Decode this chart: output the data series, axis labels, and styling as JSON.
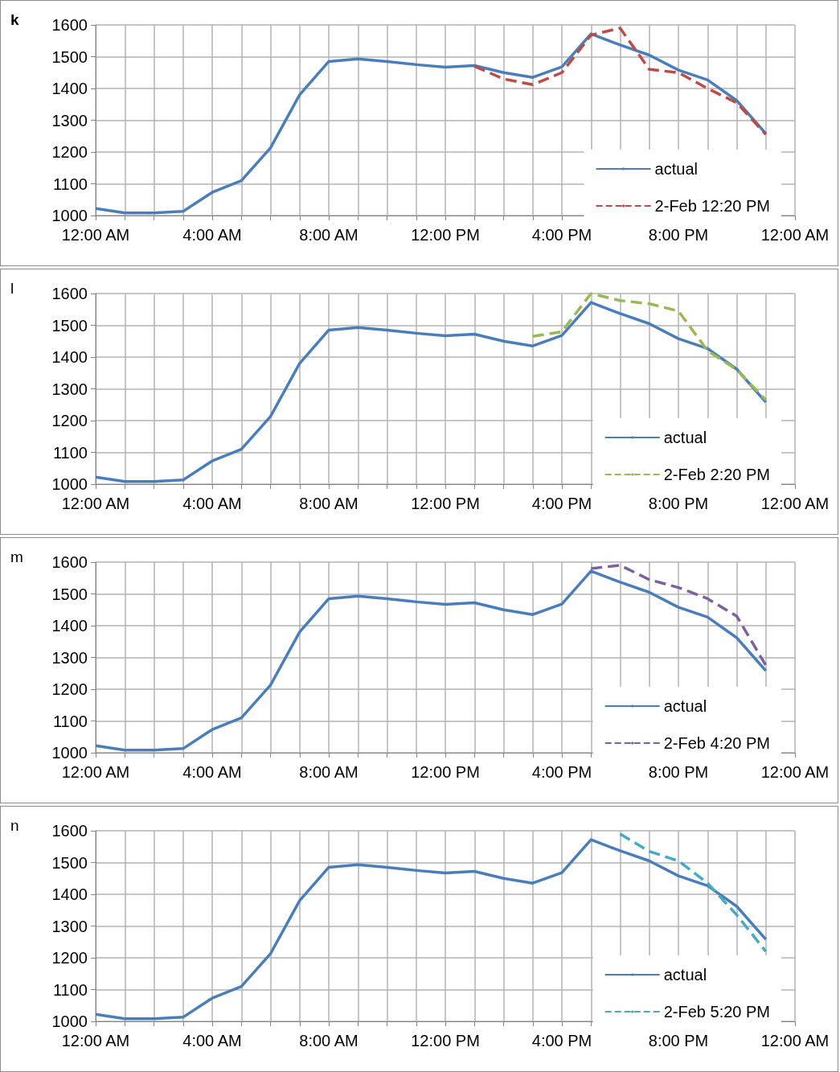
{
  "chart_data": [
    {
      "type": "line",
      "annotations": [
        "k"
      ],
      "xlim": [
        0,
        24
      ],
      "ylim": [
        1000,
        1600
      ],
      "yticks": [
        1000,
        1100,
        1200,
        1300,
        1400,
        1500,
        1600
      ],
      "xticks": [
        {
          "value": 0,
          "label": "12:00 AM"
        },
        {
          "value": 1,
          "label": null
        },
        {
          "value": 2,
          "label": null
        },
        {
          "value": 3,
          "label": null
        },
        {
          "value": 4,
          "label": "4:00 AM"
        },
        {
          "value": 5,
          "label": null
        },
        {
          "value": 6,
          "label": null
        },
        {
          "value": 7,
          "label": null
        },
        {
          "value": 8,
          "label": "8:00 AM"
        },
        {
          "value": 9,
          "label": null
        },
        {
          "value": 10,
          "label": null
        },
        {
          "value": 11,
          "label": null
        },
        {
          "value": 12,
          "label": "12:00 PM"
        },
        {
          "value": 13,
          "label": null
        },
        {
          "value": 14,
          "label": null
        },
        {
          "value": 15,
          "label": null
        },
        {
          "value": 16,
          "label": "4:00 PM"
        },
        {
          "value": 17,
          "label": null
        },
        {
          "value": 18,
          "label": null
        },
        {
          "value": 19,
          "label": null
        },
        {
          "value": 20,
          "label": "8:00 PM"
        },
        {
          "value": 21,
          "label": null
        },
        {
          "value": 22,
          "label": null
        },
        {
          "value": 23,
          "label": null
        },
        {
          "value": 24,
          "label": "12:00 AM"
        }
      ],
      "grid": true,
      "legend": "bottom right",
      "marker": "none",
      "series": [
        {
          "name": "actual",
          "color": "#4a7ebb",
          "line_style": "solid",
          "x": [
            0,
            1,
            2,
            3,
            4,
            5,
            6,
            7,
            8,
            9,
            10,
            11,
            12,
            13,
            14,
            15,
            16,
            17,
            18,
            19,
            20,
            21,
            22,
            23
          ],
          "values": [
            1022,
            1008,
            1008,
            1013,
            1073,
            1110,
            1213,
            1380,
            1485,
            1493,
            1485,
            1475,
            1467,
            1472,
            1450,
            1435,
            1468,
            1572,
            1537,
            1505,
            1458,
            1427,
            1362,
            1258
          ]
        },
        {
          "name": "2-Feb 12:20 PM",
          "color": "#be4b48",
          "line_style": "dashed",
          "x": [
            13,
            14,
            15,
            16,
            17,
            18,
            19,
            20,
            21,
            22,
            23
          ],
          "values": [
            1470,
            1430,
            1412,
            1450,
            1568,
            1590,
            1460,
            1450,
            1400,
            1355,
            1255
          ]
        }
      ]
    },
    {
      "type": "line",
      "annotations": [
        "l"
      ],
      "xlim": [
        0,
        24
      ],
      "ylim": [
        1000,
        1600
      ],
      "yticks": [
        1000,
        1100,
        1200,
        1300,
        1400,
        1500,
        1600
      ],
      "xticks": [
        {
          "value": 0,
          "label": "12:00 AM"
        },
        {
          "value": 1,
          "label": null
        },
        {
          "value": 2,
          "label": null
        },
        {
          "value": 3,
          "label": null
        },
        {
          "value": 4,
          "label": "4:00 AM"
        },
        {
          "value": 5,
          "label": null
        },
        {
          "value": 6,
          "label": null
        },
        {
          "value": 7,
          "label": null
        },
        {
          "value": 8,
          "label": "8:00 AM"
        },
        {
          "value": 9,
          "label": null
        },
        {
          "value": 10,
          "label": null
        },
        {
          "value": 11,
          "label": null
        },
        {
          "value": 12,
          "label": "12:00 PM"
        },
        {
          "value": 13,
          "label": null
        },
        {
          "value": 14,
          "label": null
        },
        {
          "value": 15,
          "label": null
        },
        {
          "value": 16,
          "label": "4:00 PM"
        },
        {
          "value": 17,
          "label": null
        },
        {
          "value": 18,
          "label": null
        },
        {
          "value": 19,
          "label": null
        },
        {
          "value": 20,
          "label": "8:00 PM"
        },
        {
          "value": 21,
          "label": null
        },
        {
          "value": 22,
          "label": null
        },
        {
          "value": 23,
          "label": null
        },
        {
          "value": 24,
          "label": "12:00 AM"
        }
      ],
      "grid": true,
      "legend": "bottom right",
      "marker": "none",
      "series": [
        {
          "name": "actual",
          "color": "#4a7ebb",
          "line_style": "solid",
          "x": [
            0,
            1,
            2,
            3,
            4,
            5,
            6,
            7,
            8,
            9,
            10,
            11,
            12,
            13,
            14,
            15,
            16,
            17,
            18,
            19,
            20,
            21,
            22,
            23
          ],
          "values": [
            1022,
            1008,
            1008,
            1013,
            1073,
            1110,
            1213,
            1380,
            1485,
            1493,
            1485,
            1475,
            1467,
            1472,
            1450,
            1435,
            1468,
            1572,
            1537,
            1505,
            1458,
            1427,
            1362,
            1258
          ]
        },
        {
          "name": "2-Feb 2:20 PM",
          "color": "#98b954",
          "line_style": "dashed",
          "x": [
            15,
            16,
            17,
            18,
            19,
            20,
            21,
            22,
            23
          ],
          "values": [
            1465,
            1480,
            1600,
            1578,
            1568,
            1545,
            1420,
            1360,
            1265
          ]
        }
      ]
    },
    {
      "type": "line",
      "annotations": [
        "m"
      ],
      "xlim": [
        0,
        24
      ],
      "ylim": [
        1000,
        1600
      ],
      "yticks": [
        1000,
        1100,
        1200,
        1300,
        1400,
        1500,
        1600
      ],
      "xticks": [
        {
          "value": 0,
          "label": "12:00 AM"
        },
        {
          "value": 1,
          "label": null
        },
        {
          "value": 2,
          "label": null
        },
        {
          "value": 3,
          "label": null
        },
        {
          "value": 4,
          "label": "4:00 AM"
        },
        {
          "value": 5,
          "label": null
        },
        {
          "value": 6,
          "label": null
        },
        {
          "value": 7,
          "label": null
        },
        {
          "value": 8,
          "label": "8:00 AM"
        },
        {
          "value": 9,
          "label": null
        },
        {
          "value": 10,
          "label": null
        },
        {
          "value": 11,
          "label": null
        },
        {
          "value": 12,
          "label": "12:00 PM"
        },
        {
          "value": 13,
          "label": null
        },
        {
          "value": 14,
          "label": null
        },
        {
          "value": 15,
          "label": null
        },
        {
          "value": 16,
          "label": "4:00 PM"
        },
        {
          "value": 17,
          "label": null
        },
        {
          "value": 18,
          "label": null
        },
        {
          "value": 19,
          "label": null
        },
        {
          "value": 20,
          "label": "8:00 PM"
        },
        {
          "value": 21,
          "label": null
        },
        {
          "value": 22,
          "label": null
        },
        {
          "value": 23,
          "label": null
        },
        {
          "value": 24,
          "label": "12:00 AM"
        }
      ],
      "grid": true,
      "legend": "bottom right",
      "marker": "none",
      "series": [
        {
          "name": "actual",
          "color": "#4a7ebb",
          "line_style": "solid",
          "x": [
            0,
            1,
            2,
            3,
            4,
            5,
            6,
            7,
            8,
            9,
            10,
            11,
            12,
            13,
            14,
            15,
            16,
            17,
            18,
            19,
            20,
            21,
            22,
            23
          ],
          "values": [
            1022,
            1008,
            1008,
            1013,
            1073,
            1110,
            1213,
            1380,
            1485,
            1493,
            1485,
            1475,
            1467,
            1472,
            1450,
            1435,
            1468,
            1572,
            1537,
            1505,
            1458,
            1427,
            1362,
            1258
          ]
        },
        {
          "name": "2-Feb 4:20 PM",
          "color": "#7d60a0",
          "line_style": "dashed",
          "x": [
            17,
            18,
            19,
            20,
            21,
            22,
            23
          ],
          "values": [
            1580,
            1590,
            1545,
            1520,
            1485,
            1430,
            1275
          ]
        }
      ]
    },
    {
      "type": "line",
      "annotations": [
        "n"
      ],
      "xlim": [
        0,
        24
      ],
      "ylim": [
        1000,
        1600
      ],
      "yticks": [
        1000,
        1100,
        1200,
        1300,
        1400,
        1500,
        1600
      ],
      "xticks": [
        {
          "value": 0,
          "label": "12:00 AM"
        },
        {
          "value": 1,
          "label": null
        },
        {
          "value": 2,
          "label": null
        },
        {
          "value": 3,
          "label": null
        },
        {
          "value": 4,
          "label": "4:00 AM"
        },
        {
          "value": 5,
          "label": null
        },
        {
          "value": 6,
          "label": null
        },
        {
          "value": 7,
          "label": null
        },
        {
          "value": 8,
          "label": "8:00 AM"
        },
        {
          "value": 9,
          "label": null
        },
        {
          "value": 10,
          "label": null
        },
        {
          "value": 11,
          "label": null
        },
        {
          "value": 12,
          "label": "12:00 PM"
        },
        {
          "value": 13,
          "label": null
        },
        {
          "value": 14,
          "label": null
        },
        {
          "value": 15,
          "label": null
        },
        {
          "value": 16,
          "label": "4:00 PM"
        },
        {
          "value": 17,
          "label": null
        },
        {
          "value": 18,
          "label": null
        },
        {
          "value": 19,
          "label": null
        },
        {
          "value": 20,
          "label": "8:00 PM"
        },
        {
          "value": 21,
          "label": null
        },
        {
          "value": 22,
          "label": null
        },
        {
          "value": 23,
          "label": null
        },
        {
          "value": 24,
          "label": "12:00 AM"
        }
      ],
      "grid": true,
      "legend": "bottom right",
      "marker": "none",
      "series": [
        {
          "name": "actual",
          "color": "#4a7ebb",
          "line_style": "solid",
          "x": [
            0,
            1,
            2,
            3,
            4,
            5,
            6,
            7,
            8,
            9,
            10,
            11,
            12,
            13,
            14,
            15,
            16,
            17,
            18,
            19,
            20,
            21,
            22,
            23
          ],
          "values": [
            1022,
            1008,
            1008,
            1013,
            1073,
            1110,
            1213,
            1380,
            1485,
            1493,
            1485,
            1475,
            1467,
            1472,
            1450,
            1435,
            1468,
            1572,
            1537,
            1505,
            1458,
            1427,
            1362,
            1258
          ]
        },
        {
          "name": "2-Feb 5:20 PM",
          "color": "#46aac5",
          "line_style": "dashed",
          "x": [
            18,
            19,
            20,
            21,
            22,
            23
          ],
          "values": [
            1590,
            1535,
            1505,
            1435,
            1335,
            1220
          ]
        }
      ]
    }
  ]
}
